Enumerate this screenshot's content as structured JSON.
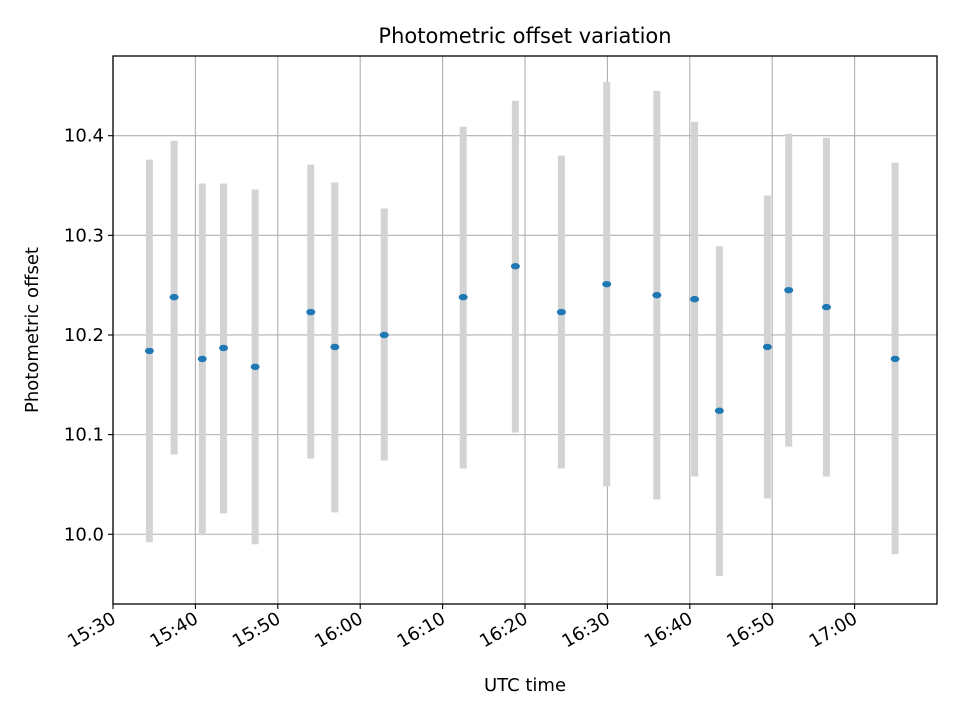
{
  "chart_data": {
    "type": "scatter",
    "title": "Photometric offset variation",
    "xlabel": "UTC time",
    "ylabel": "Photometric offset",
    "x_tick_labels": [
      "15:30",
      "15:40",
      "15:50",
      "16:00",
      "16:10",
      "16:20",
      "16:30",
      "16:40",
      "16:50",
      "17:00"
    ],
    "y_tick_labels": [
      "10.0",
      "10.1",
      "10.2",
      "10.3",
      "10.4"
    ],
    "xlim": [
      "15:30",
      "17:10"
    ],
    "ylim": [
      9.93,
      10.48
    ],
    "grid": true,
    "series": [
      {
        "marker_color": "#1f77b4",
        "errorbar_color": "#d3d3d3",
        "points": [
          {
            "x": "15:34:25",
            "y": 10.184,
            "ylow": 9.992,
            "yhigh": 10.376
          },
          {
            "x": "15:37:25",
            "y": 10.238,
            "ylow": 10.08,
            "yhigh": 10.395
          },
          {
            "x": "15:40:50",
            "y": 10.176,
            "ylow": 9.999,
            "yhigh": 10.352
          },
          {
            "x": "15:43:25",
            "y": 10.187,
            "ylow": 10.021,
            "yhigh": 10.352
          },
          {
            "x": "15:47:15",
            "y": 10.168,
            "ylow": 9.99,
            "yhigh": 10.346
          },
          {
            "x": "15:54:00",
            "y": 10.223,
            "ylow": 10.076,
            "yhigh": 10.371
          },
          {
            "x": "15:56:55",
            "y": 10.188,
            "ylow": 10.022,
            "yhigh": 10.353
          },
          {
            "x": "16:02:55",
            "y": 10.2,
            "ylow": 10.074,
            "yhigh": 10.327
          },
          {
            "x": "16:12:30",
            "y": 10.238,
            "ylow": 10.066,
            "yhigh": 10.409
          },
          {
            "x": "16:18:50",
            "y": 10.269,
            "ylow": 10.102,
            "yhigh": 10.435
          },
          {
            "x": "16:24:25",
            "y": 10.223,
            "ylow": 10.066,
            "yhigh": 10.38
          },
          {
            "x": "16:29:55",
            "y": 10.251,
            "ylow": 10.048,
            "yhigh": 10.454
          },
          {
            "x": "16:36:00",
            "y": 10.24,
            "ylow": 10.035,
            "yhigh": 10.445
          },
          {
            "x": "16:40:35",
            "y": 10.236,
            "ylow": 10.058,
            "yhigh": 10.414
          },
          {
            "x": "16:43:35",
            "y": 10.124,
            "ylow": 9.958,
            "yhigh": 10.289
          },
          {
            "x": "16:49:25",
            "y": 10.188,
            "ylow": 10.036,
            "yhigh": 10.34
          },
          {
            "x": "16:52:00",
            "y": 10.245,
            "ylow": 10.088,
            "yhigh": 10.402
          },
          {
            "x": "16:56:35",
            "y": 10.228,
            "ylow": 10.058,
            "yhigh": 10.398
          },
          {
            "x": "17:04:55",
            "y": 10.176,
            "ylow": 9.98,
            "yhigh": 10.373
          }
        ]
      }
    ]
  }
}
